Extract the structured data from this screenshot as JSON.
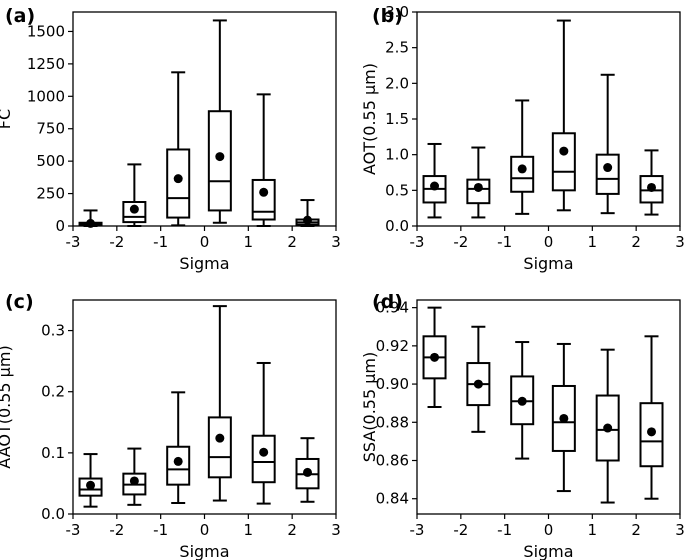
{
  "chart_data": [
    {
      "type": "boxplot",
      "label": "(a)",
      "xlabel": "Sigma",
      "ylabel": "FC",
      "xlim": [
        -3,
        3
      ],
      "ylim": [
        0,
        1650
      ],
      "xticks": [
        -3,
        -2,
        -1,
        0,
        1,
        2,
        3
      ],
      "xtick_labels": [
        "-3",
        "-2",
        "-1",
        "0",
        "1",
        "2",
        "3"
      ],
      "yticks": [
        0,
        250,
        500,
        750,
        1000,
        1250,
        1500
      ],
      "ytick_labels": [
        "0",
        "250",
        "500",
        "750",
        "1000",
        "1250",
        "1500"
      ],
      "boxes": [
        {
          "x": -2.6,
          "whisker_low": 0,
          "q1": 5,
          "median": 12,
          "q3": 25,
          "whisker_high": 120,
          "mean": 20
        },
        {
          "x": -1.6,
          "whisker_low": 0,
          "q1": 30,
          "median": 70,
          "q3": 185,
          "whisker_high": 475,
          "mean": 130
        },
        {
          "x": -0.6,
          "whisker_low": 5,
          "q1": 65,
          "median": 215,
          "q3": 590,
          "whisker_high": 1185,
          "mean": 365
        },
        {
          "x": 0.35,
          "whisker_low": 25,
          "q1": 120,
          "median": 345,
          "q3": 885,
          "whisker_high": 1585,
          "mean": 535
        },
        {
          "x": 1.35,
          "whisker_low": 0,
          "q1": 50,
          "median": 110,
          "q3": 355,
          "whisker_high": 1015,
          "mean": 260
        },
        {
          "x": 2.35,
          "whisker_low": 0,
          "q1": 10,
          "median": 28,
          "q3": 50,
          "whisker_high": 200,
          "mean": 45
        }
      ]
    },
    {
      "type": "boxplot",
      "label": "(b)",
      "xlabel": "Sigma",
      "ylabel": "AOT(0.55 μm)",
      "xlim": [
        -3,
        3
      ],
      "ylim": [
        0,
        3.0
      ],
      "xticks": [
        -3,
        -2,
        -1,
        0,
        1,
        2,
        3
      ],
      "xtick_labels": [
        "-3",
        "-2",
        "-1",
        "0",
        "1",
        "2",
        "3"
      ],
      "yticks": [
        0,
        0.5,
        1.0,
        1.5,
        2.0,
        2.5,
        3.0
      ],
      "ytick_labels": [
        "0.0",
        "0.5",
        "1.0",
        "1.5",
        "2.0",
        "2.5",
        "3.0"
      ],
      "boxes": [
        {
          "x": -2.6,
          "whisker_low": 0.12,
          "q1": 0.33,
          "median": 0.52,
          "q3": 0.7,
          "whisker_high": 1.15,
          "mean": 0.56
        },
        {
          "x": -1.6,
          "whisker_low": 0.12,
          "q1": 0.32,
          "median": 0.52,
          "q3": 0.65,
          "whisker_high": 1.1,
          "mean": 0.54
        },
        {
          "x": -0.6,
          "whisker_low": 0.17,
          "q1": 0.48,
          "median": 0.67,
          "q3": 0.97,
          "whisker_high": 1.76,
          "mean": 0.8
        },
        {
          "x": 0.35,
          "whisker_low": 0.22,
          "q1": 0.5,
          "median": 0.76,
          "q3": 1.3,
          "whisker_high": 2.88,
          "mean": 1.05
        },
        {
          "x": 1.35,
          "whisker_low": 0.18,
          "q1": 0.45,
          "median": 0.66,
          "q3": 1.0,
          "whisker_high": 2.12,
          "mean": 0.82
        },
        {
          "x": 2.35,
          "whisker_low": 0.16,
          "q1": 0.33,
          "median": 0.5,
          "q3": 0.7,
          "whisker_high": 1.06,
          "mean": 0.54
        }
      ]
    },
    {
      "type": "boxplot",
      "label": "(c)",
      "xlabel": "Sigma",
      "ylabel": "AAOT(0.55 μm)",
      "xlim": [
        -3,
        3
      ],
      "ylim": [
        0,
        0.35
      ],
      "xticks": [
        -3,
        -2,
        -1,
        0,
        1,
        2,
        3
      ],
      "xtick_labels": [
        "-3",
        "-2",
        "-1",
        "0",
        "1",
        "2",
        "3"
      ],
      "yticks": [
        0,
        0.1,
        0.2,
        0.3
      ],
      "ytick_labels": [
        "0.0",
        "0.1",
        "0.2",
        "0.3"
      ],
      "boxes": [
        {
          "x": -2.6,
          "whisker_low": 0.012,
          "q1": 0.03,
          "median": 0.04,
          "q3": 0.058,
          "whisker_high": 0.098,
          "mean": 0.047
        },
        {
          "x": -1.6,
          "whisker_low": 0.015,
          "q1": 0.032,
          "median": 0.048,
          "q3": 0.066,
          "whisker_high": 0.107,
          "mean": 0.054
        },
        {
          "x": -0.6,
          "whisker_low": 0.018,
          "q1": 0.048,
          "median": 0.073,
          "q3": 0.11,
          "whisker_high": 0.199,
          "mean": 0.086
        },
        {
          "x": 0.35,
          "whisker_low": 0.022,
          "q1": 0.06,
          "median": 0.093,
          "q3": 0.158,
          "whisker_high": 0.34,
          "mean": 0.124
        },
        {
          "x": 1.35,
          "whisker_low": 0.017,
          "q1": 0.052,
          "median": 0.085,
          "q3": 0.128,
          "whisker_high": 0.247,
          "mean": 0.101
        },
        {
          "x": 2.35,
          "whisker_low": 0.02,
          "q1": 0.042,
          "median": 0.065,
          "q3": 0.09,
          "whisker_high": 0.124,
          "mean": 0.068
        }
      ]
    },
    {
      "type": "boxplot",
      "label": "(d)",
      "xlabel": "Sigma",
      "ylabel": "SSA(0.55 μm)",
      "xlim": [
        -3,
        3
      ],
      "ylim": [
        0.832,
        0.944
      ],
      "xticks": [
        -3,
        -2,
        -1,
        0,
        1,
        2,
        3
      ],
      "xtick_labels": [
        "-3",
        "-2",
        "-1",
        "0",
        "1",
        "2",
        "3"
      ],
      "yticks": [
        0.84,
        0.86,
        0.88,
        0.9,
        0.92,
        0.94
      ],
      "ytick_labels": [
        "0.84",
        "0.86",
        "0.88",
        "0.90",
        "0.92",
        "0.94"
      ],
      "boxes": [
        {
          "x": -2.6,
          "whisker_low": 0.888,
          "q1": 0.903,
          "median": 0.914,
          "q3": 0.925,
          "whisker_high": 0.94,
          "mean": 0.914
        },
        {
          "x": -1.6,
          "whisker_low": 0.875,
          "q1": 0.889,
          "median": 0.9,
          "q3": 0.911,
          "whisker_high": 0.93,
          "mean": 0.9
        },
        {
          "x": -0.6,
          "whisker_low": 0.861,
          "q1": 0.879,
          "median": 0.891,
          "q3": 0.904,
          "whisker_high": 0.922,
          "mean": 0.891
        },
        {
          "x": 0.35,
          "whisker_low": 0.844,
          "q1": 0.865,
          "median": 0.88,
          "q3": 0.899,
          "whisker_high": 0.921,
          "mean": 0.882
        },
        {
          "x": 1.35,
          "whisker_low": 0.838,
          "q1": 0.86,
          "median": 0.876,
          "q3": 0.894,
          "whisker_high": 0.918,
          "mean": 0.877
        },
        {
          "x": 2.35,
          "whisker_low": 0.84,
          "q1": 0.857,
          "median": 0.87,
          "q3": 0.89,
          "whisker_high": 0.925,
          "mean": 0.875
        }
      ]
    }
  ]
}
